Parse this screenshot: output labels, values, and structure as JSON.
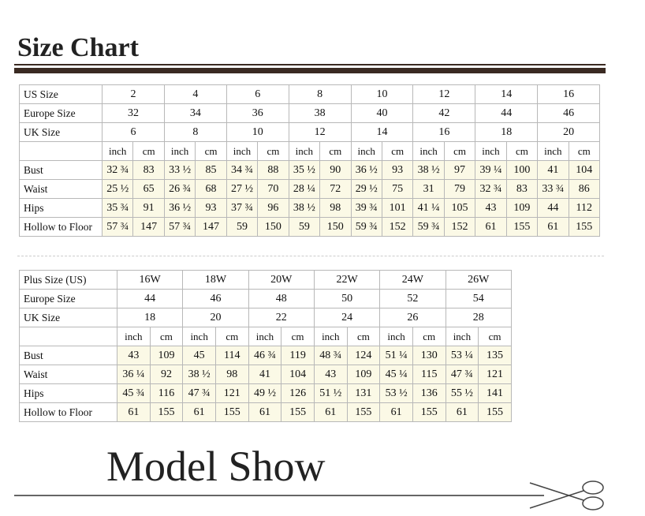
{
  "header": {
    "title": "Size Chart"
  },
  "tables": [
    {
      "size_rows": [
        {
          "label": "US Size",
          "values": [
            "2",
            "4",
            "6",
            "8",
            "10",
            "12",
            "14",
            "16"
          ]
        },
        {
          "label": "Europe Size",
          "values": [
            "32",
            "34",
            "36",
            "38",
            "40",
            "42",
            "44",
            "46"
          ]
        },
        {
          "label": "UK Size",
          "values": [
            "6",
            "8",
            "10",
            "12",
            "14",
            "16",
            "18",
            "20"
          ]
        }
      ],
      "units": [
        "inch",
        "cm"
      ],
      "measure_rows": [
        {
          "label": "Bust",
          "values": [
            "32 ¾",
            "83",
            "33 ½",
            "85",
            "34 ¾",
            "88",
            "35 ½",
            "90",
            "36 ½",
            "93",
            "38 ½",
            "97",
            "39 ¼",
            "100",
            "41",
            "104"
          ]
        },
        {
          "label": "Waist",
          "values": [
            "25 ½",
            "65",
            "26 ¾",
            "68",
            "27 ½",
            "70",
            "28 ¼",
            "72",
            "29 ½",
            "75",
            "31",
            "79",
            "32 ¾",
            "83",
            "33 ¾",
            "86"
          ]
        },
        {
          "label": "Hips",
          "values": [
            "35 ¾",
            "91",
            "36 ½",
            "93",
            "37 ¾",
            "96",
            "38 ½",
            "98",
            "39 ¾",
            "101",
            "41 ¼",
            "105",
            "43",
            "109",
            "44",
            "112"
          ]
        },
        {
          "label": "Hollow to Floor",
          "values": [
            "57 ¾",
            "147",
            "57 ¾",
            "147",
            "59",
            "150",
            "59",
            "150",
            "59 ¾",
            "152",
            "59 ¾",
            "152",
            "61",
            "155",
            "61",
            "155"
          ]
        }
      ]
    },
    {
      "size_rows": [
        {
          "label": "Plus Size (US)",
          "values": [
            "16W",
            "18W",
            "20W",
            "22W",
            "24W",
            "26W"
          ]
        },
        {
          "label": "Europe Size",
          "values": [
            "44",
            "46",
            "48",
            "50",
            "52",
            "54"
          ]
        },
        {
          "label": "UK Size",
          "values": [
            "18",
            "20",
            "22",
            "24",
            "26",
            "28"
          ]
        }
      ],
      "units": [
        "inch",
        "cm"
      ],
      "measure_rows": [
        {
          "label": "Bust",
          "values": [
            "43",
            "109",
            "45",
            "114",
            "46 ¾",
            "119",
            "48 ¾",
            "124",
            "51 ¼",
            "130",
            "53 ¼",
            "135"
          ]
        },
        {
          "label": "Waist",
          "values": [
            "36 ¼",
            "92",
            "38 ½",
            "98",
            "41",
            "104",
            "43",
            "109",
            "45 ¼",
            "115",
            "47 ¾",
            "121"
          ]
        },
        {
          "label": "Hips",
          "values": [
            "45 ¾",
            "116",
            "47 ¾",
            "121",
            "49 ½",
            "126",
            "51 ½",
            "131",
            "53 ½",
            "136",
            "55 ½",
            "141"
          ]
        },
        {
          "label": "Hollow to Floor",
          "values": [
            "61",
            "155",
            "61",
            "155",
            "61",
            "155",
            "61",
            "155",
            "61",
            "155",
            "61",
            "155"
          ]
        }
      ]
    }
  ],
  "footer": {
    "title": "Model Show"
  }
}
